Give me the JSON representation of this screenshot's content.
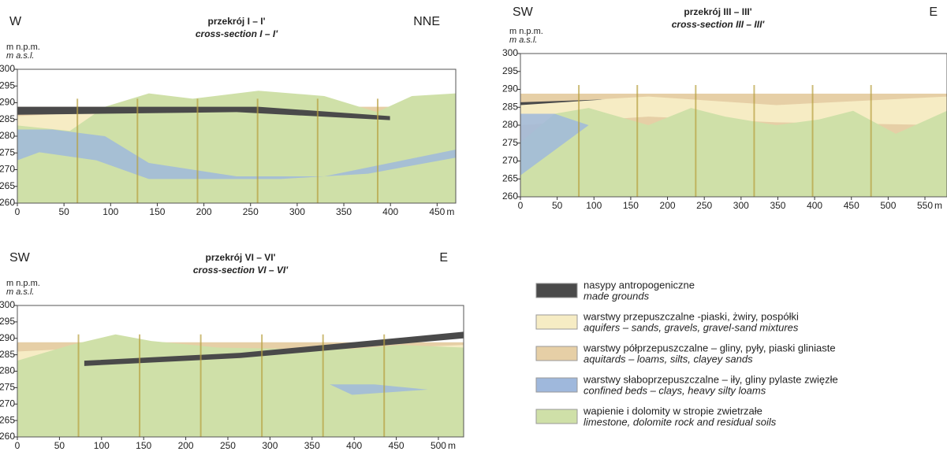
{
  "panels": [
    {
      "left_label": "W",
      "right_label": "NNE",
      "title": "przekrój I – I'",
      "subtitle": "cross-section I – I'",
      "y_label_pl": "m n.p.m.",
      "y_label_en": "m a.s.l.",
      "xlim": [
        0,
        470
      ],
      "ylim": [
        260,
        300
      ],
      "xticks": [
        0,
        50,
        100,
        150,
        200,
        250,
        300,
        350,
        400,
        450
      ],
      "yticks": [
        260,
        265,
        270,
        275,
        280,
        285,
        290,
        295,
        300
      ],
      "x_unit": "m"
    },
    {
      "left_label": "SW",
      "right_label": "E",
      "title": "przekrój III – III'",
      "subtitle": "cross-section III – III'",
      "y_label_pl": "m n.p.m.",
      "y_label_en": "m a.s.l.",
      "xlim": [
        0,
        580
      ],
      "ylim": [
        260,
        300
      ],
      "xticks": [
        0,
        50,
        100,
        150,
        200,
        250,
        300,
        350,
        400,
        450,
        500,
        550
      ],
      "yticks": [
        260,
        265,
        270,
        275,
        280,
        285,
        290,
        295,
        300
      ],
      "x_unit": "m"
    },
    {
      "left_label": "SW",
      "right_label": "E",
      "title": "przekrój VI – VI'",
      "subtitle": "cross-section VI – VI'",
      "y_label_pl": "m n.p.m.",
      "y_label_en": "m a.s.l.",
      "xlim": [
        0,
        530
      ],
      "ylim": [
        260,
        300
      ],
      "xticks": [
        0,
        50,
        100,
        150,
        200,
        250,
        300,
        350,
        400,
        450,
        500
      ],
      "yticks": [
        260,
        265,
        270,
        275,
        280,
        285,
        290,
        295,
        300
      ],
      "x_unit": "m"
    }
  ],
  "legend": {
    "items": [
      {
        "pl": "nasypy antropogeniczne",
        "en": "made grounds",
        "color": "#4a4a4a"
      },
      {
        "pl": "warstwy przepuszczalne -piaski, żwiry, pospółki",
        "en": "aquifers – sands, gravels, gravel-sand mixtures",
        "color": "#f6ecc4"
      },
      {
        "pl": "warstwy półprzepuszczalne – gliny, pyły, piaski gliniaste",
        "en": "aquitards – loams, silts, clayey sands",
        "color": "#e6cfa6"
      },
      {
        "pl": "warstwy słaboprzepuszczalne – iły, gliny pylaste zwięzłe",
        "en": "confined beds – clays, heavy silty loams",
        "color": "#9fb8dc"
      },
      {
        "pl": "wapienie i dolomity w stropie zwietrzałe",
        "en": "limestone, dolomite rock and residual soils",
        "color": "#cfe0a8"
      }
    ]
  }
}
